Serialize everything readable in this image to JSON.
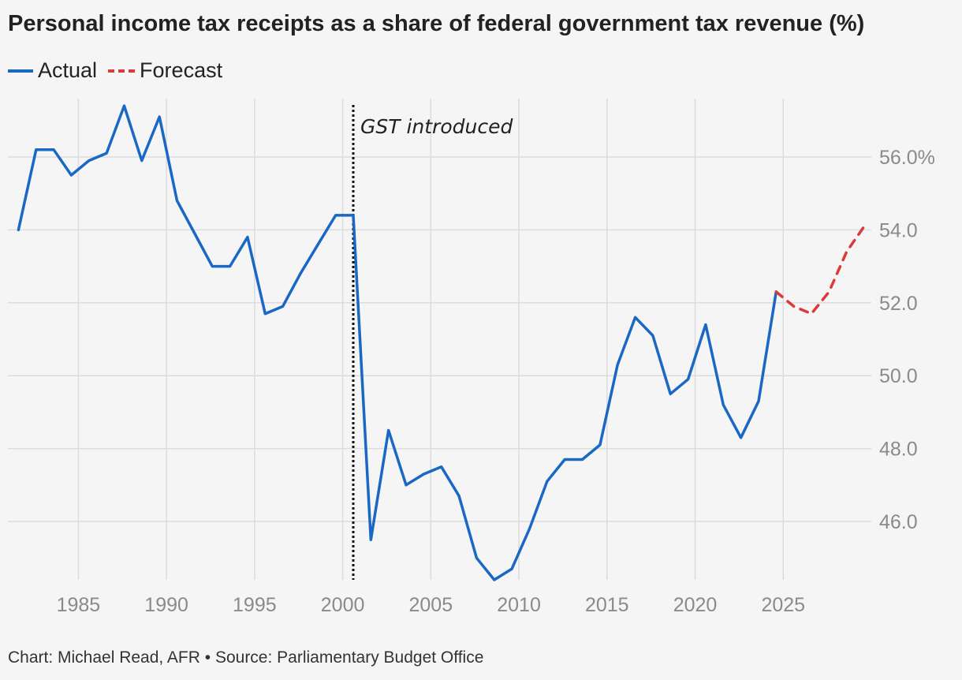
{
  "header": {
    "title": "Personal income tax receipts as a share of federal government tax revenue (%)"
  },
  "legend": {
    "actual_label": "Actual",
    "forecast_label": "Forecast"
  },
  "footer": {
    "source": "Chart: Michael Read, AFR • Source: Parliamentary Budget Office"
  },
  "colors": {
    "actual": "#1a68c4",
    "forecast": "#d93b3b",
    "grid": "#dcdcdc",
    "background": "#f5f5f5"
  },
  "chart_data": {
    "type": "line",
    "title": "Personal income tax receipts as a share of federal government tax revenue (%)",
    "xlabel": "",
    "ylabel": "",
    "xlim": [
      1981,
      2030
    ],
    "ylim": [
      44.4,
      57.6
    ],
    "x_ticks": [
      1985,
      1990,
      1995,
      2000,
      2005,
      2010,
      2015,
      2020,
      2025
    ],
    "y_ticks": [
      {
        "value": 46,
        "label": "46.0"
      },
      {
        "value": 48,
        "label": "48.0"
      },
      {
        "value": 50,
        "label": "50.0"
      },
      {
        "value": 52,
        "label": "52.0"
      },
      {
        "value": 54,
        "label": "54.0"
      },
      {
        "value": 56,
        "label": "56.0%"
      }
    ],
    "grid": true,
    "legend_position": "top-left",
    "series": [
      {
        "name": "Actual",
        "style": "solid",
        "points": [
          [
            1981.6,
            54.0
          ],
          [
            1982.6,
            56.2
          ],
          [
            1983.6,
            56.2
          ],
          [
            1984.6,
            55.5
          ],
          [
            1985.6,
            55.9
          ],
          [
            1986.6,
            56.1
          ],
          [
            1987.6,
            57.4
          ],
          [
            1988.6,
            55.9
          ],
          [
            1989.6,
            57.1
          ],
          [
            1990.6,
            54.8
          ],
          [
            1991.6,
            53.9
          ],
          [
            1992.6,
            53.0
          ],
          [
            1993.6,
            53.0
          ],
          [
            1994.6,
            53.8
          ],
          [
            1995.6,
            51.7
          ],
          [
            1996.6,
            51.9
          ],
          [
            1997.6,
            52.8
          ],
          [
            1998.6,
            53.6
          ],
          [
            1999.6,
            54.4
          ],
          [
            2000.6,
            54.4
          ],
          [
            2001.6,
            45.5
          ],
          [
            2002.6,
            48.5
          ],
          [
            2003.6,
            47.0
          ],
          [
            2004.6,
            47.3
          ],
          [
            2005.6,
            47.5
          ],
          [
            2006.6,
            46.7
          ],
          [
            2007.6,
            45.0
          ],
          [
            2008.6,
            44.4
          ],
          [
            2009.6,
            44.7
          ],
          [
            2010.6,
            45.8
          ],
          [
            2011.6,
            47.1
          ],
          [
            2012.6,
            47.7
          ],
          [
            2013.6,
            47.7
          ],
          [
            2014.6,
            48.1
          ],
          [
            2015.6,
            50.3
          ],
          [
            2016.6,
            51.6
          ],
          [
            2017.6,
            51.1
          ],
          [
            2018.6,
            49.5
          ],
          [
            2019.6,
            49.9
          ],
          [
            2020.6,
            51.4
          ],
          [
            2021.6,
            49.2
          ],
          [
            2022.6,
            48.3
          ],
          [
            2023.6,
            49.3
          ],
          [
            2024.6,
            52.3
          ]
        ]
      },
      {
        "name": "Forecast",
        "style": "dashed",
        "points": [
          [
            2024.6,
            52.3
          ],
          [
            2025.6,
            51.9
          ],
          [
            2026.6,
            51.7
          ],
          [
            2027.6,
            52.3
          ],
          [
            2028.6,
            53.4
          ],
          [
            2029.6,
            54.1
          ]
        ]
      }
    ],
    "annotations": [
      {
        "text": "GST introduced",
        "x": 2000.6,
        "type": "vertical-line"
      }
    ]
  }
}
